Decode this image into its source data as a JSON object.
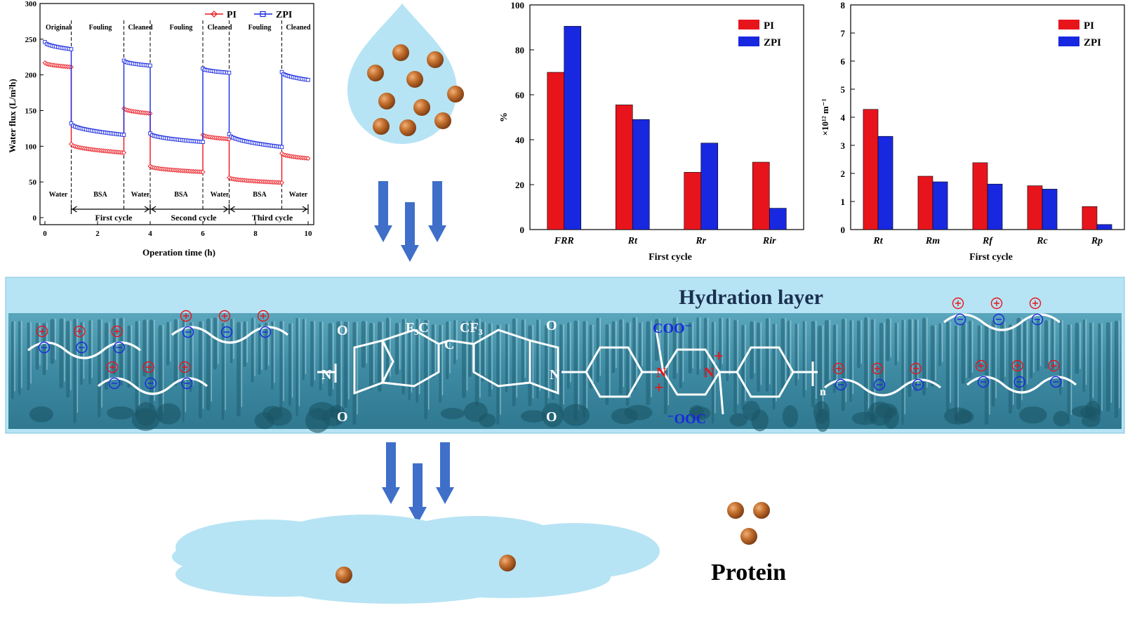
{
  "colors": {
    "pi": "#e8141c",
    "zpi": "#1828e0",
    "water": "#b7e4f4",
    "membrane": "#3f8fa8",
    "arrow": "#3f6fc9",
    "protein": "#c06a2c"
  },
  "flux_chart": {
    "ylabel": "Water flux (L/m²h)",
    "xlabel": "Operation time (h)",
    "legend": [
      "PI",
      "ZPI"
    ],
    "x_ticks": [
      "0",
      "2",
      "4",
      "6",
      "8",
      "10"
    ],
    "y_ticks": [
      "0",
      "50",
      "100",
      "150",
      "200",
      "250",
      "300"
    ],
    "phase_labels": [
      "Original",
      "Fouling",
      "Cleaned",
      "Fouling",
      "Cleaned",
      "Fouling",
      "Cleaned"
    ],
    "feed_labels": [
      "Water",
      "BSA",
      "Water",
      "BSA",
      "Water",
      "BSA",
      "Water"
    ],
    "cycle_labels": [
      "First cycle",
      "Second cycle",
      "Third cycle"
    ]
  },
  "chart_data": [
    {
      "type": "line",
      "xlabel": "Operation time (h)",
      "ylabel": "Water flux (L/m²h)",
      "xlim": [
        0,
        10
      ],
      "ylim": [
        0,
        300
      ],
      "legend_position": "top-right",
      "series": [
        {
          "name": "PI",
          "segments": [
            {
              "x": [
                0,
                1
              ],
              "y": [
                217,
                211
              ]
            },
            {
              "x": [
                1,
                3
              ],
              "y": [
                103,
                91
              ]
            },
            {
              "x": [
                3,
                4
              ],
              "y": [
                153,
                146
              ]
            },
            {
              "x": [
                4,
                6
              ],
              "y": [
                72,
                64
              ]
            },
            {
              "x": [
                6,
                7
              ],
              "y": [
                116,
                110
              ]
            },
            {
              "x": [
                7,
                9
              ],
              "y": [
                56,
                49
              ]
            },
            {
              "x": [
                9,
                10
              ],
              "y": [
                90,
                83
              ]
            }
          ]
        },
        {
          "name": "ZPI",
          "segments": [
            {
              "x": [
                0,
                1
              ],
              "y": [
                246,
                236
              ]
            },
            {
              "x": [
                1,
                3
              ],
              "y": [
                132,
                116
              ]
            },
            {
              "x": [
                3,
                4
              ],
              "y": [
                220,
                213
              ]
            },
            {
              "x": [
                4,
                6
              ],
              "y": [
                118,
                106
              ]
            },
            {
              "x": [
                6,
                7
              ],
              "y": [
                209,
                203
              ]
            },
            {
              "x": [
                7,
                9
              ],
              "y": [
                117,
                99
              ]
            },
            {
              "x": [
                9,
                10
              ],
              "y": [
                204,
                193
              ]
            }
          ]
        }
      ]
    },
    {
      "type": "bar",
      "xlabel": "First cycle",
      "ylabel": "%",
      "ylim": [
        0,
        100
      ],
      "y_ticks": [
        "0",
        "20",
        "40",
        "60",
        "80",
        "100"
      ],
      "categories": [
        "FRR",
        "Rt",
        "Rr",
        "Rir"
      ],
      "legend_position": "top-right",
      "series": [
        {
          "name": "PI",
          "values": [
            70,
            55.5,
            25.5,
            30
          ]
        },
        {
          "name": "ZPI",
          "values": [
            90.5,
            49,
            38.5,
            9.5
          ]
        }
      ]
    },
    {
      "type": "bar",
      "xlabel": "First cycle",
      "ylabel": "×10¹² m⁻¹",
      "ylim": [
        0,
        8
      ],
      "y_ticks": [
        "0",
        "1",
        "2",
        "3",
        "4",
        "5",
        "6",
        "7",
        "8"
      ],
      "categories": [
        "Rt",
        "Rm",
        "Rf",
        "Rc",
        "Rp"
      ],
      "legend_position": "top-right",
      "series": [
        {
          "name": "PI",
          "values": [
            4.28,
            1.9,
            2.38,
            1.56,
            0.82
          ]
        },
        {
          "name": "ZPI",
          "values": [
            3.32,
            1.7,
            1.62,
            1.44,
            0.18
          ]
        }
      ]
    }
  ],
  "schematic": {
    "hydration_label": "Hydration layer",
    "protein_label": "Protein",
    "structure_labels": {
      "f3c": "F₃C",
      "cf3": "CF₃",
      "c": "C",
      "o": "O",
      "n": "N",
      "coo": "COO⁻",
      "ooc": "⁻OOC",
      "n_sub": "n",
      "plus": "+"
    }
  }
}
